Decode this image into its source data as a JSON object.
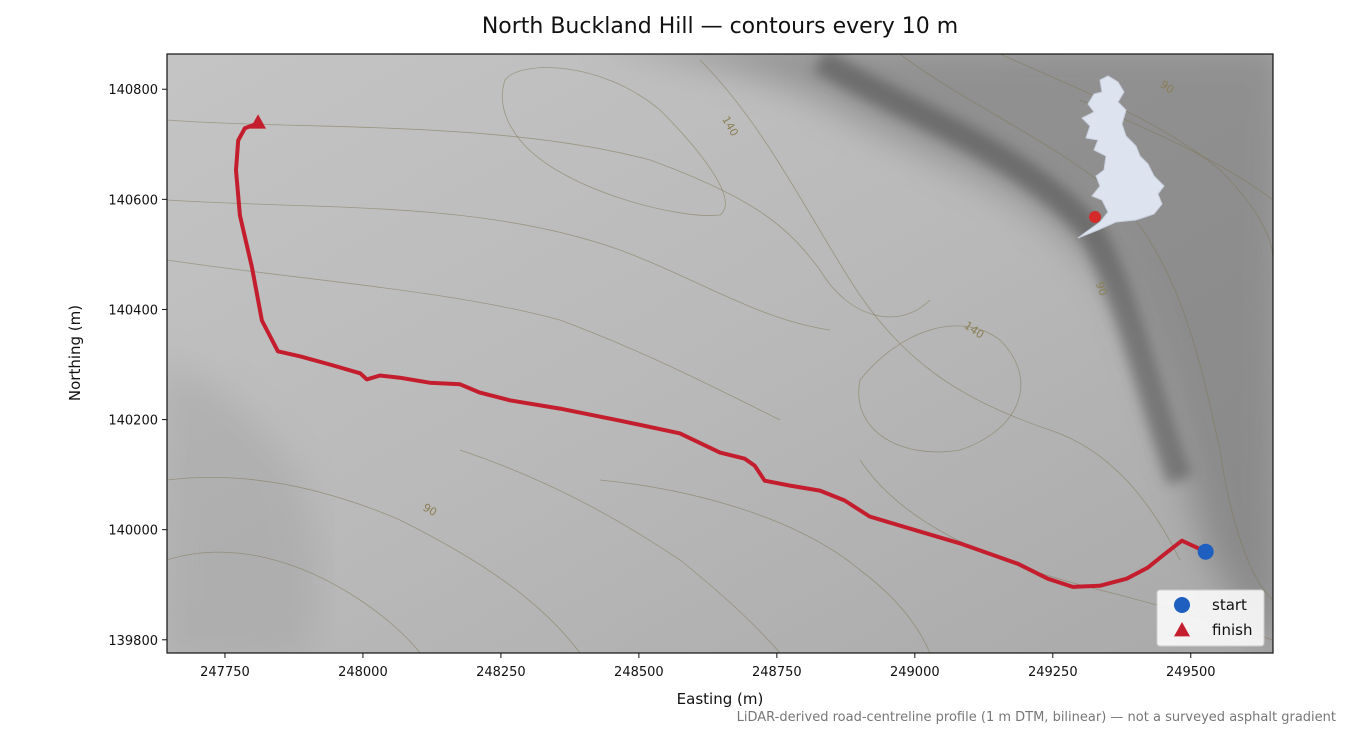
{
  "chart_data": {
    "type": "route",
    "title": "North Buckland Hill — contours every 10 m",
    "xlabel": "Easting (m)",
    "ylabel": "Northing (m)",
    "footnote": "LiDAR-derived road-centreline profile (1 m DTM, bilinear) — not a surveyed asphalt gradient",
    "xlim": [
      247645,
      249649
    ],
    "ylim": [
      139776,
      140864
    ],
    "xticks": [
      247750,
      248000,
      248250,
      248500,
      248750,
      249000,
      249250,
      249500
    ],
    "yticks": [
      139800,
      140000,
      140200,
      140400,
      140600,
      140800
    ],
    "contour_labels": [
      90,
      140,
      90,
      140,
      90
    ],
    "route": {
      "color": "#c41e2e",
      "x": [
        249527,
        249484,
        249453,
        249422,
        249384,
        249335,
        249286,
        249241,
        249187,
        249082,
        248991,
        248918,
        248873,
        248828,
        248774,
        248728,
        248710,
        248692,
        248647,
        248574,
        248466,
        248357,
        248266,
        248212,
        248176,
        248121,
        248067,
        248031,
        248007,
        247995,
        247940,
        247886,
        247846,
        247817,
        247799,
        247777,
        247770,
        247774,
        247786,
        247804
      ],
      "y": [
        139960,
        139980,
        139956,
        139931,
        139911,
        139898,
        139896,
        139911,
        139938,
        139975,
        140002,
        140024,
        140053,
        140071,
        140080,
        140089,
        140116,
        140129,
        140140,
        140175,
        140198,
        140220,
        140235,
        140249,
        140264,
        140267,
        140276,
        140280,
        140273,
        140284,
        140300,
        140315,
        140324,
        140380,
        140476,
        140571,
        140653,
        140707,
        140729,
        140736
      ]
    },
    "series": [
      {
        "name": "start",
        "color": "#1f5fbf",
        "marker": "circle",
        "x": [
          249527
        ],
        "y": [
          139960
        ]
      },
      {
        "name": "finish",
        "color": "#c41e2e",
        "marker": "triangle",
        "x": [
          247810
        ],
        "y": [
          140740
        ]
      }
    ],
    "legend": "lower right"
  }
}
